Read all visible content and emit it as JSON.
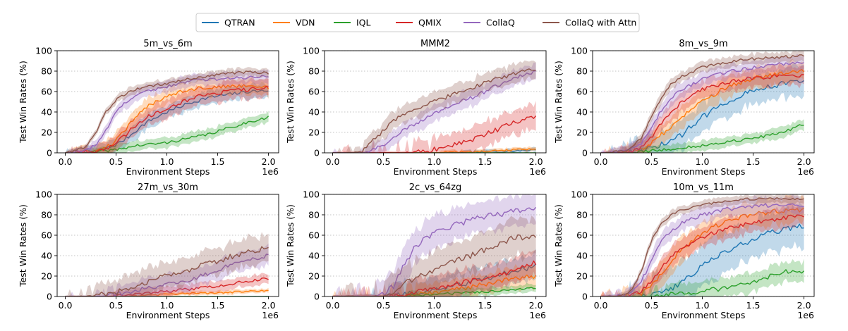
{
  "legend": {
    "entries": [
      {
        "name": "QTRAN",
        "color": "#1f77b4"
      },
      {
        "name": "VDN",
        "color": "#ff7f0e"
      },
      {
        "name": "IQL",
        "color": "#2ca02c"
      },
      {
        "name": "QMIX",
        "color": "#d62728"
      },
      {
        "name": "CollaQ",
        "color": "#9467bd"
      },
      {
        "name": "CollaQ with Attn",
        "color": "#8c564b"
      }
    ],
    "placement": "top-center"
  },
  "chart_data": [
    {
      "type": "line",
      "title": "5m_vs_6m",
      "xlabel": "Environment Steps",
      "ylabel": "Test Win Rates (%)",
      "x_multiplier_label": "1e6",
      "xlim": [
        -0.08,
        2.1
      ],
      "ylim": [
        0,
        100
      ],
      "xticks": [
        0.0,
        0.5,
        1.0,
        1.5,
        2.0
      ],
      "yticks": [
        0,
        20,
        40,
        60,
        80,
        100
      ],
      "grid": true,
      "x": [
        0,
        0.2,
        0.3,
        0.4,
        0.5,
        0.6,
        0.7,
        0.8,
        1.0,
        1.2,
        1.4,
        1.6,
        1.8,
        2.0
      ],
      "series": [
        {
          "name": "QTRAN",
          "values": [
            0,
            1,
            2,
            4,
            8,
            14,
            22,
            30,
            40,
            48,
            54,
            57,
            60,
            61
          ],
          "band": 7
        },
        {
          "name": "VDN",
          "values": [
            0,
            1,
            2,
            5,
            12,
            24,
            35,
            45,
            56,
            62,
            64,
            65,
            66,
            64
          ],
          "band": 8
        },
        {
          "name": "IQL",
          "values": [
            0,
            0,
            1,
            2,
            3,
            5,
            7,
            8,
            10,
            14,
            18,
            24,
            30,
            35
          ],
          "band": 5
        },
        {
          "name": "QMIX",
          "values": [
            0,
            1,
            2,
            4,
            10,
            18,
            28,
            35,
            44,
            52,
            58,
            60,
            62,
            64
          ],
          "band": 9
        },
        {
          "name": "CollaQ",
          "values": [
            0,
            2,
            8,
            22,
            40,
            50,
            56,
            60,
            65,
            70,
            72,
            73,
            74,
            75
          ],
          "band": 6
        },
        {
          "name": "CollaQ with Attn",
          "values": [
            0,
            5,
            20,
            40,
            52,
            58,
            62,
            65,
            68,
            72,
            75,
            78,
            79,
            78
          ],
          "band": 4
        }
      ]
    },
    {
      "type": "line",
      "title": "MMM2",
      "xlabel": "Environment Steps",
      "ylabel": "Test Win Rates (%)",
      "x_multiplier_label": "1e6",
      "xlim": [
        -0.08,
        2.1
      ],
      "ylim": [
        0,
        100
      ],
      "xticks": [
        0.0,
        0.5,
        1.0,
        1.5,
        2.0
      ],
      "yticks": [
        0,
        20,
        40,
        60,
        80,
        100
      ],
      "grid": true,
      "x": [
        0,
        0.2,
        0.3,
        0.4,
        0.5,
        0.6,
        0.7,
        0.8,
        1.0,
        1.2,
        1.4,
        1.6,
        1.8,
        2.0
      ],
      "series": [
        {
          "name": "QTRAN",
          "values": [
            0,
            0,
            0,
            0,
            0,
            0,
            0,
            0,
            0,
            0,
            1,
            1,
            2,
            3
          ],
          "band": 2
        },
        {
          "name": "VDN",
          "values": [
            0,
            0,
            0,
            0,
            0,
            0,
            0,
            0,
            0,
            1,
            1,
            2,
            3,
            4
          ],
          "band": 2
        },
        {
          "name": "IQL",
          "values": [
            0,
            0,
            0,
            0,
            0,
            0,
            0,
            0,
            0,
            0,
            0,
            0,
            0,
            0
          ],
          "band": 1
        },
        {
          "name": "QMIX",
          "values": [
            0,
            0,
            0,
            0,
            0,
            0,
            0,
            1,
            3,
            8,
            14,
            22,
            30,
            35
          ],
          "band": 12
        },
        {
          "name": "CollaQ",
          "values": [
            0,
            0,
            0,
            3,
            8,
            15,
            22,
            28,
            38,
            48,
            55,
            65,
            73,
            80
          ],
          "band": 8
        },
        {
          "name": "CollaQ with Attn",
          "values": [
            0,
            0,
            2,
            12,
            22,
            32,
            38,
            42,
            50,
            58,
            65,
            72,
            78,
            82
          ],
          "band": 9
        }
      ]
    },
    {
      "type": "line",
      "title": "8m_vs_9m",
      "xlabel": "Environment Steps",
      "ylabel": "Test Win Rates (%)",
      "x_multiplier_label": "1e6",
      "xlim": [
        -0.08,
        2.1
      ],
      "ylim": [
        0,
        100
      ],
      "xticks": [
        0.0,
        0.5,
        1.0,
        1.5,
        2.0
      ],
      "yticks": [
        0,
        20,
        40,
        60,
        80,
        100
      ],
      "grid": true,
      "x": [
        0,
        0.2,
        0.3,
        0.4,
        0.5,
        0.6,
        0.7,
        0.8,
        1.0,
        1.2,
        1.4,
        1.6,
        1.8,
        2.0
      ],
      "series": [
        {
          "name": "QTRAN",
          "values": [
            0,
            0,
            1,
            2,
            5,
            8,
            12,
            18,
            35,
            48,
            58,
            64,
            68,
            70
          ],
          "band": 14
        },
        {
          "name": "VDN",
          "values": [
            0,
            0,
            1,
            3,
            10,
            18,
            25,
            35,
            50,
            62,
            70,
            75,
            78,
            80
          ],
          "band": 10
        },
        {
          "name": "IQL",
          "values": [
            0,
            0,
            0,
            1,
            2,
            3,
            4,
            5,
            7,
            10,
            13,
            16,
            20,
            28
          ],
          "band": 5
        },
        {
          "name": "QMIX",
          "values": [
            0,
            0,
            2,
            5,
            15,
            30,
            40,
            50,
            62,
            68,
            72,
            74,
            75,
            75
          ],
          "band": 9
        },
        {
          "name": "CollaQ",
          "values": [
            0,
            1,
            3,
            10,
            25,
            42,
            55,
            62,
            72,
            78,
            82,
            85,
            87,
            88
          ],
          "band": 7
        },
        {
          "name": "CollaQ with Attn",
          "values": [
            0,
            1,
            4,
            15,
            35,
            55,
            68,
            75,
            84,
            88,
            91,
            93,
            94,
            95
          ],
          "band": 5
        }
      ]
    },
    {
      "type": "line",
      "title": "27m_vs_30m",
      "xlabel": "Environment Steps",
      "ylabel": "Test Win Rates (%)",
      "x_multiplier_label": "1e6",
      "xlim": [
        -0.08,
        2.1
      ],
      "ylim": [
        0,
        100
      ],
      "xticks": [
        0.0,
        0.5,
        1.0,
        1.5,
        2.0
      ],
      "yticks": [
        0,
        20,
        40,
        60,
        80,
        100
      ],
      "grid": true,
      "x": [
        0,
        0.2,
        0.3,
        0.4,
        0.5,
        0.6,
        0.7,
        0.8,
        1.0,
        1.2,
        1.4,
        1.6,
        1.8,
        2.0
      ],
      "series": [
        {
          "name": "QTRAN",
          "values": [
            0,
            0,
            0,
            0,
            0,
            0,
            0,
            0,
            0,
            0,
            0,
            0,
            0,
            0
          ],
          "band": 1
        },
        {
          "name": "VDN",
          "values": [
            0,
            0,
            0,
            0,
            0,
            0,
            1,
            1,
            2,
            3,
            3,
            4,
            5,
            6
          ],
          "band": 2
        },
        {
          "name": "IQL",
          "values": [
            0,
            0,
            0,
            0,
            0,
            0,
            0,
            0,
            0,
            0,
            0,
            0,
            0,
            0
          ],
          "band": 1
        },
        {
          "name": "QMIX",
          "values": [
            0,
            0,
            0,
            0,
            1,
            1,
            2,
            3,
            5,
            7,
            9,
            12,
            15,
            18
          ],
          "band": 5
        },
        {
          "name": "CollaQ",
          "values": [
            0,
            0,
            0,
            1,
            2,
            4,
            6,
            8,
            12,
            16,
            22,
            30,
            36,
            40
          ],
          "band": 9
        },
        {
          "name": "CollaQ with Attn",
          "values": [
            0,
            0,
            1,
            2,
            4,
            7,
            10,
            14,
            20,
            26,
            32,
            38,
            44,
            48
          ],
          "band": 13
        }
      ]
    },
    {
      "type": "line",
      "title": "2c_vs_64zg",
      "xlabel": "Environment Steps",
      "ylabel": "Test Win Rates (%)",
      "x_multiplier_label": "1e6",
      "xlim": [
        -0.08,
        2.1
      ],
      "ylim": [
        0,
        100
      ],
      "xticks": [
        0.0,
        0.5,
        1.0,
        1.5,
        2.0
      ],
      "yticks": [
        0,
        20,
        40,
        60,
        80,
        100
      ],
      "grid": true,
      "x": [
        0,
        0.2,
        0.3,
        0.4,
        0.5,
        0.6,
        0.7,
        0.8,
        1.0,
        1.2,
        1.4,
        1.6,
        1.8,
        2.0
      ],
      "series": [
        {
          "name": "QTRAN",
          "values": [
            0,
            0,
            0,
            0,
            0,
            1,
            2,
            3,
            6,
            10,
            15,
            20,
            25,
            30
          ],
          "band": 12
        },
        {
          "name": "VDN",
          "values": [
            0,
            0,
            0,
            0,
            0,
            1,
            1,
            2,
            4,
            7,
            10,
            14,
            18,
            20
          ],
          "band": 10
        },
        {
          "name": "IQL",
          "values": [
            0,
            0,
            0,
            0,
            0,
            0,
            0,
            1,
            2,
            3,
            4,
            5,
            7,
            8
          ],
          "band": 4
        },
        {
          "name": "QMIX",
          "values": [
            0,
            0,
            0,
            0,
            0,
            1,
            2,
            4,
            8,
            12,
            16,
            20,
            26,
            33
          ],
          "band": 12
        },
        {
          "name": "CollaQ",
          "values": [
            0,
            0,
            0,
            0,
            2,
            10,
            30,
            48,
            62,
            70,
            76,
            80,
            84,
            85
          ],
          "band": 16
        },
        {
          "name": "CollaQ with Attn",
          "values": [
            0,
            0,
            0,
            0,
            1,
            5,
            12,
            18,
            26,
            34,
            42,
            50,
            58,
            57
          ],
          "band": 18
        }
      ]
    },
    {
      "type": "line",
      "title": "10m_vs_11m",
      "xlabel": "Environment Steps",
      "ylabel": "Test Win Rates (%)",
      "x_multiplier_label": "1e6",
      "xlim": [
        -0.08,
        2.1
      ],
      "ylim": [
        0,
        100
      ],
      "xticks": [
        0.0,
        0.5,
        1.0,
        1.5,
        2.0
      ],
      "yticks": [
        0,
        20,
        40,
        60,
        80,
        100
      ],
      "grid": true,
      "x": [
        0,
        0.2,
        0.3,
        0.4,
        0.5,
        0.6,
        0.7,
        0.8,
        1.0,
        1.2,
        1.4,
        1.6,
        1.8,
        2.0
      ],
      "series": [
        {
          "name": "QTRAN",
          "values": [
            0,
            0,
            0,
            1,
            2,
            4,
            8,
            15,
            30,
            42,
            52,
            60,
            66,
            70
          ],
          "band": 20
        },
        {
          "name": "VDN",
          "values": [
            0,
            0,
            1,
            3,
            10,
            22,
            35,
            48,
            62,
            72,
            78,
            82,
            84,
            85
          ],
          "band": 12
        },
        {
          "name": "IQL",
          "values": [
            0,
            0,
            0,
            0,
            0,
            1,
            2,
            3,
            5,
            8,
            12,
            18,
            24,
            25
          ],
          "band": 10
        },
        {
          "name": "QMIX",
          "values": [
            0,
            0,
            1,
            5,
            15,
            28,
            40,
            48,
            58,
            65,
            70,
            74,
            77,
            79
          ],
          "band": 10
        },
        {
          "name": "CollaQ",
          "values": [
            0,
            1,
            3,
            15,
            35,
            55,
            65,
            72,
            80,
            85,
            87,
            89,
            90,
            90
          ],
          "band": 8
        },
        {
          "name": "CollaQ with Attn",
          "values": [
            0,
            1,
            5,
            25,
            55,
            72,
            80,
            85,
            90,
            93,
            95,
            96,
            96,
            95
          ],
          "band": 4
        }
      ]
    }
  ]
}
